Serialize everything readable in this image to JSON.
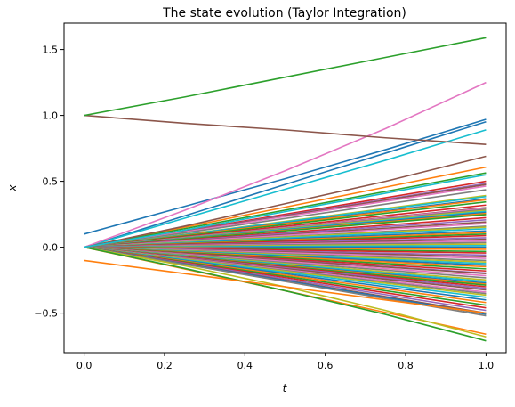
{
  "chart_data": {
    "type": "line",
    "title": "The state evolution (Taylor Integration)",
    "xlabel": "t",
    "ylabel": "x",
    "xlim": [
      -0.05,
      1.05
    ],
    "ylim": [
      -0.8,
      1.7
    ],
    "xticks": [
      "0.0",
      "0.2",
      "0.4",
      "0.6",
      "0.8",
      "1.0"
    ],
    "yticks": [
      "−0.5",
      "0.0",
      "0.5",
      "1.0",
      "1.5"
    ],
    "grid": false,
    "legend": "none",
    "x": [
      0,
      0.25,
      0.5,
      0.75,
      1.0
    ],
    "palette": [
      "#1f77b4",
      "#ff7f0e",
      "#2ca02c",
      "#d62728",
      "#9467bd",
      "#8c564b",
      "#e377c2",
      "#7f7f7f",
      "#bcbd22",
      "#17becf"
    ],
    "series": [
      {
        "color": "#1f77b4",
        "values": [
          0.0,
          0.238,
          0.476,
          0.714,
          0.952
        ]
      },
      {
        "color": "#ff7f0e",
        "values": [
          0.0,
          0.152,
          0.304,
          0.456,
          0.608
        ]
      },
      {
        "color": "#2ca02c",
        "values": [
          0.0,
          0.141,
          0.282,
          0.423,
          0.564
        ]
      },
      {
        "color": "#d62728",
        "values": [
          0.0,
          0.125,
          0.25,
          0.375,
          0.5
        ]
      },
      {
        "color": "#9467bd",
        "values": [
          0.0,
          0.121,
          0.242,
          0.363,
          0.484
        ]
      },
      {
        "color": "#8c564b",
        "values": [
          0.0,
          0.119,
          0.238,
          0.357,
          0.476
        ]
      },
      {
        "color": "#e377c2",
        "values": [
          0.0,
          0.116,
          0.232,
          0.348,
          0.464
        ]
      },
      {
        "color": "#7f7f7f",
        "values": [
          0.0,
          0.109,
          0.218,
          0.327,
          0.436
        ]
      },
      {
        "color": "#bcbd22",
        "values": [
          0.0,
          0.098,
          0.196,
          0.294,
          0.392
        ]
      },
      {
        "color": "#17becf",
        "values": [
          0.0,
          0.096,
          0.192,
          0.288,
          0.384
        ]
      },
      {
        "color": "#1f77b4",
        "values": [
          0.0,
          0.092,
          0.184,
          0.276,
          0.368
        ]
      },
      {
        "color": "#ff7f0e",
        "values": [
          0.0,
          0.09,
          0.18,
          0.27,
          0.36
        ]
      },
      {
        "color": "#2ca02c",
        "values": [
          0.0,
          0.086,
          0.172,
          0.258,
          0.344
        ]
      },
      {
        "color": "#d62728",
        "values": [
          0.0,
          0.08,
          0.16,
          0.24,
          0.32
        ]
      },
      {
        "color": "#9467bd",
        "values": [
          0.0,
          0.075,
          0.15,
          0.225,
          0.3
        ]
      },
      {
        "color": "#8c564b",
        "values": [
          0.0,
          0.075,
          0.15,
          0.225,
          0.3
        ]
      },
      {
        "color": "#e377c2",
        "values": [
          0.0,
          0.074,
          0.148,
          0.222,
          0.296
        ]
      },
      {
        "color": "#7f7f7f",
        "values": [
          0.0,
          0.072,
          0.144,
          0.216,
          0.288
        ]
      },
      {
        "color": "#bcbd22",
        "values": [
          0.0,
          0.07,
          0.14,
          0.21,
          0.28
        ]
      },
      {
        "color": "#17becf",
        "values": [
          0.0,
          0.068,
          0.136,
          0.204,
          0.272
        ]
      },
      {
        "color": "#1f77b4",
        "values": [
          0.0,
          0.066,
          0.132,
          0.198,
          0.264
        ]
      },
      {
        "color": "#ff7f0e",
        "values": [
          0.0,
          0.064,
          0.128,
          0.192,
          0.256
        ]
      },
      {
        "color": "#2ca02c",
        "values": [
          0.0,
          0.062,
          0.124,
          0.186,
          0.248
        ]
      },
      {
        "color": "#d62728",
        "values": [
          0.0,
          0.056,
          0.112,
          0.168,
          0.224
        ]
      },
      {
        "color": "#9467bd",
        "values": [
          0.0,
          0.052,
          0.104,
          0.156,
          0.208
        ]
      },
      {
        "color": "#8c564b",
        "values": [
          0.0,
          0.048,
          0.096,
          0.144,
          0.192
        ]
      },
      {
        "color": "#e377c2",
        "values": [
          0.0,
          0.045,
          0.09,
          0.135,
          0.18
        ]
      },
      {
        "color": "#7f7f7f",
        "values": [
          0.0,
          0.04,
          0.08,
          0.12,
          0.16
        ]
      },
      {
        "color": "#bcbd22",
        "values": [
          0.0,
          0.038,
          0.076,
          0.114,
          0.152
        ]
      },
      {
        "color": "#17becf",
        "values": [
          0.0,
          0.035,
          0.07,
          0.105,
          0.14
        ]
      },
      {
        "color": "#1f77b4",
        "values": [
          0.0,
          0.031,
          0.062,
          0.093,
          0.124
        ]
      },
      {
        "color": "#ff7f0e",
        "values": [
          0.0,
          0.028,
          0.056,
          0.084,
          0.112
        ]
      },
      {
        "color": "#2ca02c",
        "values": [
          0.0,
          0.025,
          0.05,
          0.075,
          0.1
        ]
      },
      {
        "color": "#d62728",
        "values": [
          0.0,
          0.022,
          0.044,
          0.066,
          0.088
        ]
      },
      {
        "color": "#9467bd",
        "values": [
          0.0,
          0.018,
          0.036,
          0.054,
          0.072
        ]
      },
      {
        "color": "#8c564b",
        "values": [
          0.0,
          0.015,
          0.03,
          0.045,
          0.06
        ]
      },
      {
        "color": "#e377c2",
        "values": [
          0.0,
          0.012,
          0.024,
          0.036,
          0.048
        ]
      },
      {
        "color": "#7f7f7f",
        "values": [
          0.0,
          0.009,
          0.018,
          0.027,
          0.036
        ]
      },
      {
        "color": "#bcbd22",
        "values": [
          0.0,
          0.006,
          0.012,
          0.018,
          0.024
        ]
      },
      {
        "color": "#17becf",
        "values": [
          0.0,
          0.003,
          0.006,
          0.009,
          0.012
        ]
      },
      {
        "color": "#1f77b4",
        "values": [
          0.0,
          0.0,
          0.0,
          0.0,
          0.0
        ]
      },
      {
        "color": "#ff7f0e",
        "values": [
          0.0,
          -0.004,
          -0.008,
          -0.012,
          -0.016
        ]
      },
      {
        "color": "#2ca02c",
        "values": [
          0.0,
          -0.008,
          -0.016,
          -0.024,
          -0.032
        ]
      },
      {
        "color": "#d62728",
        "values": [
          0.0,
          -0.011,
          -0.022,
          -0.033,
          -0.044
        ]
      },
      {
        "color": "#9467bd",
        "values": [
          0.0,
          -0.015,
          -0.03,
          -0.045,
          -0.06
        ]
      },
      {
        "color": "#8c564b",
        "values": [
          0.0,
          -0.018,
          -0.036,
          -0.054,
          -0.072
        ]
      },
      {
        "color": "#e377c2",
        "values": [
          0.0,
          -0.021,
          -0.042,
          -0.063,
          -0.084
        ]
      },
      {
        "color": "#7f7f7f",
        "values": [
          0.0,
          -0.025,
          -0.05,
          -0.075,
          -0.1
        ]
      },
      {
        "color": "#bcbd22",
        "values": [
          0.0,
          -0.028,
          -0.056,
          -0.084,
          -0.112
        ]
      },
      {
        "color": "#17becf",
        "values": [
          0.0,
          -0.031,
          -0.062,
          -0.093,
          -0.124
        ]
      },
      {
        "color": "#1f77b4",
        "values": [
          0.0,
          -0.034,
          -0.068,
          -0.102,
          -0.136
        ]
      },
      {
        "color": "#ff7f0e",
        "values": [
          0.0,
          -0.037,
          -0.074,
          -0.111,
          -0.148
        ]
      },
      {
        "color": "#2ca02c",
        "values": [
          0.0,
          -0.041,
          -0.082,
          -0.123,
          -0.164
        ]
      },
      {
        "color": "#d62728",
        "values": [
          0.0,
          -0.045,
          -0.09,
          -0.135,
          -0.18
        ]
      },
      {
        "color": "#9467bd",
        "values": [
          0.0,
          -0.049,
          -0.098,
          -0.147,
          -0.196
        ]
      },
      {
        "color": "#8c564b",
        "values": [
          0.0,
          -0.05,
          -0.1,
          -0.15,
          -0.2
        ]
      },
      {
        "color": "#e377c2",
        "values": [
          0.0,
          -0.054,
          -0.108,
          -0.162,
          -0.216
        ]
      },
      {
        "color": "#7f7f7f",
        "values": [
          0.0,
          -0.058,
          -0.116,
          -0.174,
          -0.232
        ]
      },
      {
        "color": "#bcbd22",
        "values": [
          0.0,
          -0.062,
          -0.124,
          -0.186,
          -0.248
        ]
      },
      {
        "color": "#17becf",
        "values": [
          0.0,
          -0.065,
          -0.13,
          -0.195,
          -0.26
        ]
      },
      {
        "color": "#1f77b4",
        "values": [
          0.0,
          -0.068,
          -0.136,
          -0.204,
          -0.272
        ]
      },
      {
        "color": "#ff7f0e",
        "values": [
          0.0,
          -0.07,
          -0.14,
          -0.21,
          -0.28
        ]
      },
      {
        "color": "#2ca02c",
        "values": [
          0.0,
          -0.072,
          -0.144,
          -0.216,
          -0.288
        ]
      },
      {
        "color": "#d62728",
        "values": [
          0.0,
          -0.075,
          -0.15,
          -0.225,
          -0.3
        ]
      },
      {
        "color": "#9467bd",
        "values": [
          0.0,
          -0.078,
          -0.156,
          -0.234,
          -0.312
        ]
      },
      {
        "color": "#8c564b",
        "values": [
          0.0,
          -0.081,
          -0.162,
          -0.243,
          -0.324
        ]
      },
      {
        "color": "#e377c2",
        "values": [
          0.0,
          -0.085,
          -0.17,
          -0.255,
          -0.34
        ]
      },
      {
        "color": "#7f7f7f",
        "values": [
          0.0,
          -0.088,
          -0.176,
          -0.264,
          -0.352
        ]
      },
      {
        "color": "#bcbd22",
        "values": [
          0.0,
          -0.091,
          -0.182,
          -0.273,
          -0.364
        ]
      },
      {
        "color": "#17becf",
        "values": [
          0.0,
          -0.095,
          -0.19,
          -0.285,
          -0.38
        ]
      },
      {
        "color": "#1f77b4",
        "values": [
          0.0,
          -0.1,
          -0.2,
          -0.3,
          -0.4
        ]
      },
      {
        "color": "#ff7f0e",
        "values": [
          0.0,
          -0.105,
          -0.21,
          -0.315,
          -0.42
        ]
      },
      {
        "color": "#2ca02c",
        "values": [
          0.0,
          -0.11,
          -0.22,
          -0.33,
          -0.44
        ]
      },
      {
        "color": "#d62728",
        "values": [
          0.0,
          -0.115,
          -0.23,
          -0.345,
          -0.46
        ]
      },
      {
        "color": "#9467bd",
        "values": [
          0.0,
          -0.12,
          -0.24,
          -0.36,
          -0.48
        ]
      },
      {
        "color": "#8c564b",
        "values": [
          0.0,
          -0.125,
          -0.25,
          -0.375,
          -0.5
        ]
      },
      {
        "color": "#1f77b4",
        "values": [
          0.0,
          -0.127,
          -0.254,
          -0.381,
          -0.508
        ]
      },
      {
        "color": "#7f7f7f",
        "values": [
          0.0,
          -0.13,
          -0.26,
          -0.39,
          -0.52
        ]
      },
      {
        "color": "#ff7f0e",
        "values": [
          0.0,
          -0.165,
          -0.33,
          -0.495,
          -0.66
        ]
      },
      {
        "color": "#bcbd22",
        "values": [
          0.0,
          -0.14,
          -0.3,
          -0.48,
          -0.68
        ]
      },
      {
        "color": "#2ca02c",
        "values": [
          0.0,
          -0.16,
          -0.33,
          -0.51,
          -0.71
        ]
      },
      {
        "color": "#ff7f0e",
        "values": [
          -0.1,
          -0.2,
          -0.3,
          -0.4,
          -0.5
        ]
      },
      {
        "color": "#1f77b4",
        "values": [
          0.1,
          0.31,
          0.52,
          0.74,
          0.97
        ]
      },
      {
        "color": "#17becf",
        "values": [
          0.0,
          0.22,
          0.44,
          0.66,
          0.89
        ]
      },
      {
        "color": "#e377c2",
        "values": [
          0.0,
          0.28,
          0.58,
          0.9,
          1.25
        ]
      },
      {
        "color": "#8c564b",
        "values": [
          0.0,
          0.16,
          0.33,
          0.5,
          0.69
        ]
      },
      {
        "color": "#17becf",
        "values": [
          0.0,
          0.13,
          0.27,
          0.41,
          0.55
        ]
      },
      {
        "color": "#8c564b",
        "values": [
          1.0,
          0.94,
          0.89,
          0.83,
          0.78
        ]
      },
      {
        "color": "#2ca02c",
        "values": [
          1.0,
          1.14,
          1.29,
          1.44,
          1.59
        ]
      }
    ]
  }
}
